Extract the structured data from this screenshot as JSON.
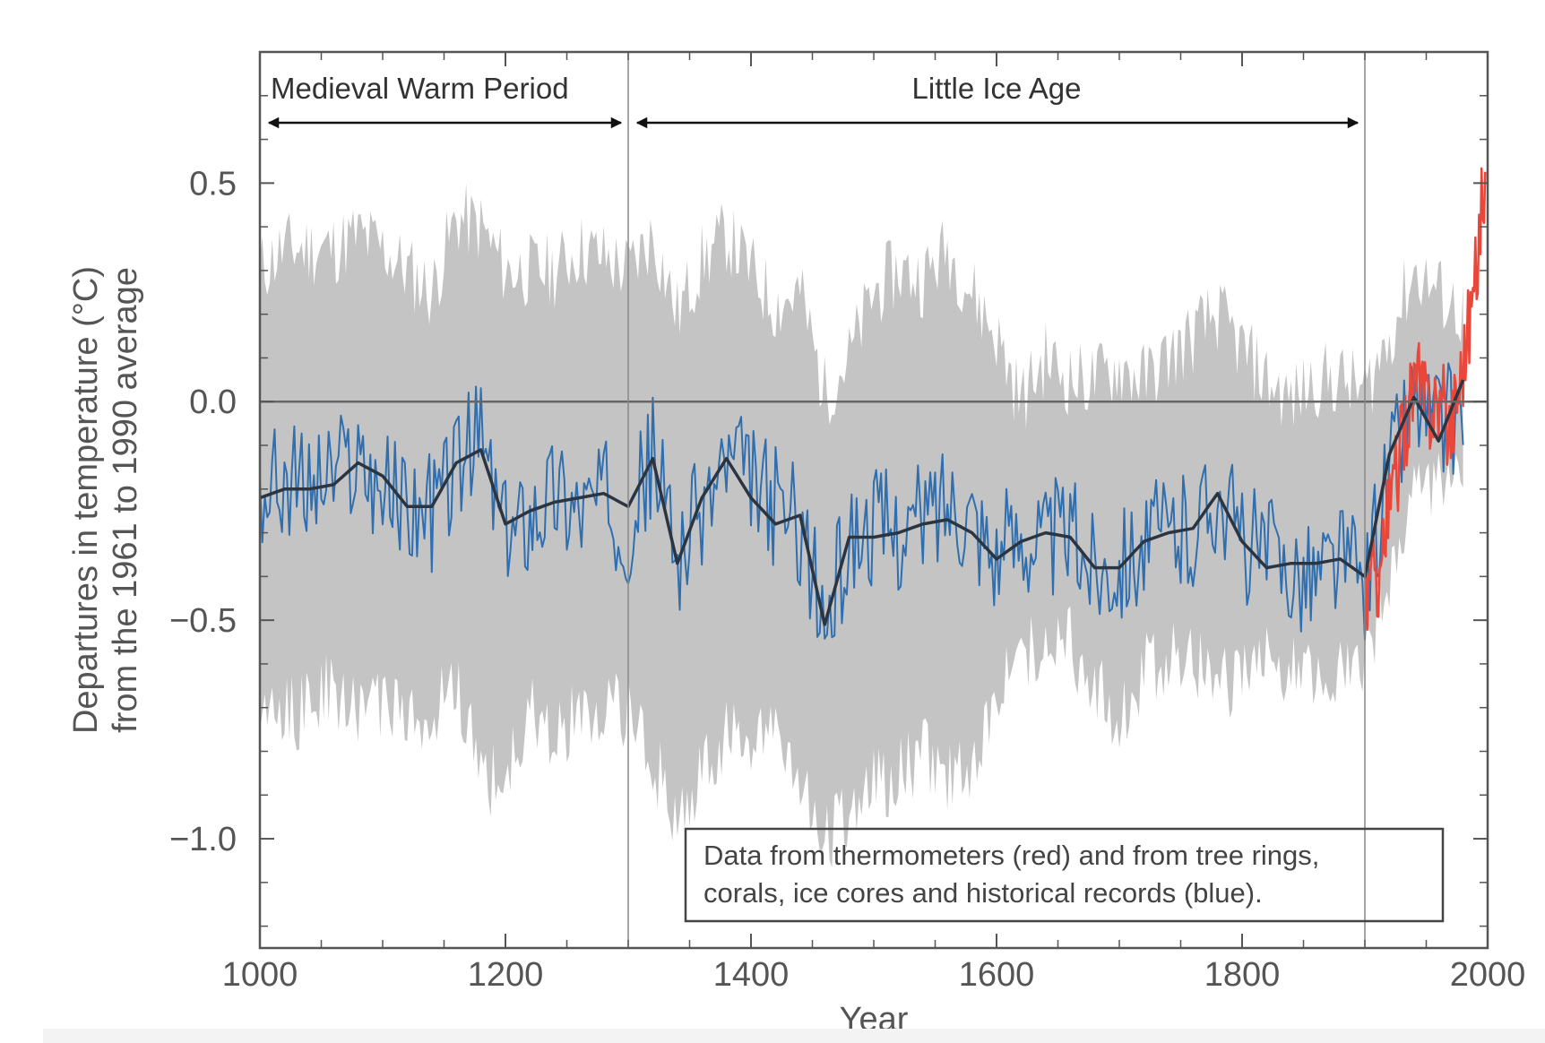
{
  "chart_data": {
    "type": "line",
    "title": "",
    "xlabel": "Year",
    "ylabel_lines": [
      "Departures in temperature (°C)",
      "from the 1961 to 1990 average"
    ],
    "xlim": [
      1000,
      2000
    ],
    "ylim": [
      -1.25,
      0.8
    ],
    "xticks": [
      1000,
      1200,
      1400,
      1600,
      1800,
      2000
    ],
    "yticks": [
      0.5,
      0.0,
      -0.5,
      -1.0
    ],
    "ytick_labels": [
      "0.5",
      "0.0",
      "−0.5",
      "−1.0"
    ],
    "grid": false,
    "zero_line": 0.0,
    "periods": [
      {
        "label": "Medieval Warm Period",
        "start": 1000,
        "end": 1300
      },
      {
        "label": "Little Ice Age",
        "start": 1300,
        "end": 1900
      }
    ],
    "annotation": [
      "Data from thermometers (red) and from tree rings,",
      "corals, ice cores and historical records (blue)."
    ],
    "colors": {
      "uncertainty": "#c4c4c4",
      "proxy": "#2f6fb0",
      "smoothed": "#2b3441",
      "instrumental": "#e8473a",
      "axis": "#555555"
    },
    "series": [
      {
        "name": "uncertainty",
        "kind": "band",
        "x": [
          1000,
          1020,
          1040,
          1060,
          1080,
          1100,
          1120,
          1140,
          1160,
          1180,
          1200,
          1220,
          1240,
          1260,
          1280,
          1300,
          1320,
          1340,
          1360,
          1380,
          1400,
          1420,
          1440,
          1460,
          1480,
          1500,
          1520,
          1540,
          1560,
          1580,
          1600,
          1620,
          1640,
          1660,
          1680,
          1700,
          1720,
          1740,
          1760,
          1780,
          1800,
          1820,
          1840,
          1860,
          1880,
          1900,
          1920,
          1940,
          1960,
          1980
        ],
        "upper": [
          0.3,
          0.35,
          0.35,
          0.35,
          0.38,
          0.35,
          0.3,
          0.25,
          0.42,
          0.4,
          0.3,
          0.3,
          0.3,
          0.35,
          0.33,
          0.3,
          0.38,
          0.2,
          0.32,
          0.38,
          0.3,
          0.22,
          0.25,
          0.02,
          0.1,
          0.25,
          0.3,
          0.28,
          0.35,
          0.25,
          0.15,
          0.0,
          0.1,
          0.05,
          0.05,
          0.08,
          0.05,
          0.1,
          0.15,
          0.2,
          0.12,
          0.05,
          0.0,
          0.05,
          0.05,
          0.02,
          0.15,
          0.3,
          0.25,
          0.2
        ],
        "lower": [
          -0.68,
          -0.72,
          -0.7,
          -0.65,
          -0.72,
          -0.68,
          -0.75,
          -0.7,
          -0.65,
          -0.85,
          -0.88,
          -0.72,
          -0.75,
          -0.72,
          -0.7,
          -0.72,
          -0.82,
          -0.95,
          -0.85,
          -0.75,
          -0.8,
          -0.75,
          -0.9,
          -1.0,
          -0.95,
          -0.88,
          -0.85,
          -0.8,
          -0.85,
          -0.88,
          -0.65,
          -0.6,
          -0.55,
          -0.55,
          -0.65,
          -0.72,
          -0.62,
          -0.58,
          -0.6,
          -0.65,
          -0.62,
          -0.58,
          -0.62,
          -0.65,
          -0.62,
          -0.6,
          -0.4,
          -0.2,
          -0.2,
          -0.2
        ]
      },
      {
        "name": "proxy",
        "kind": "line",
        "x": [
          1000,
          1020,
          1040,
          1060,
          1080,
          1100,
          1120,
          1140,
          1160,
          1180,
          1200,
          1220,
          1240,
          1260,
          1280,
          1300,
          1320,
          1340,
          1360,
          1380,
          1400,
          1420,
          1440,
          1460,
          1480,
          1500,
          1520,
          1540,
          1560,
          1580,
          1600,
          1620,
          1640,
          1660,
          1680,
          1700,
          1720,
          1740,
          1760,
          1780,
          1800,
          1820,
          1840,
          1860,
          1880,
          1900,
          1920,
          1940,
          1960,
          1980
        ],
        "values": [
          -0.22,
          -0.18,
          -0.2,
          -0.17,
          -0.13,
          -0.2,
          -0.24,
          -0.25,
          -0.15,
          -0.08,
          -0.32,
          -0.25,
          -0.2,
          -0.24,
          -0.22,
          -0.28,
          -0.12,
          -0.35,
          -0.25,
          -0.14,
          -0.18,
          -0.24,
          -0.28,
          -0.52,
          -0.32,
          -0.28,
          -0.3,
          -0.27,
          -0.22,
          -0.25,
          -0.35,
          -0.3,
          -0.32,
          -0.3,
          -0.38,
          -0.36,
          -0.33,
          -0.3,
          -0.3,
          -0.2,
          -0.32,
          -0.35,
          -0.38,
          -0.4,
          -0.35,
          -0.42,
          -0.15,
          0.02,
          -0.06,
          -0.02
        ]
      },
      {
        "name": "smoothed",
        "kind": "line",
        "x": [
          1000,
          1020,
          1040,
          1060,
          1080,
          1100,
          1120,
          1140,
          1160,
          1180,
          1200,
          1220,
          1240,
          1260,
          1280,
          1300,
          1320,
          1340,
          1360,
          1380,
          1400,
          1420,
          1440,
          1460,
          1480,
          1500,
          1520,
          1540,
          1560,
          1580,
          1600,
          1620,
          1640,
          1660,
          1680,
          1700,
          1720,
          1740,
          1760,
          1780,
          1800,
          1820,
          1840,
          1860,
          1880,
          1900,
          1920,
          1940,
          1960,
          1980
        ],
        "values": [
          -0.22,
          -0.2,
          -0.2,
          -0.19,
          -0.14,
          -0.17,
          -0.24,
          -0.24,
          -0.14,
          -0.11,
          -0.28,
          -0.25,
          -0.23,
          -0.22,
          -0.21,
          -0.24,
          -0.13,
          -0.37,
          -0.22,
          -0.13,
          -0.22,
          -0.28,
          -0.26,
          -0.51,
          -0.31,
          -0.31,
          -0.3,
          -0.28,
          -0.27,
          -0.3,
          -0.36,
          -0.32,
          -0.3,
          -0.31,
          -0.38,
          -0.38,
          -0.32,
          -0.3,
          -0.29,
          -0.21,
          -0.32,
          -0.38,
          -0.37,
          -0.37,
          -0.36,
          -0.4,
          -0.12,
          0.01,
          -0.09,
          0.05
        ]
      },
      {
        "name": "instrumental",
        "kind": "line",
        "x": [
          1900,
          1910,
          1920,
          1930,
          1940,
          1950,
          1960,
          1970,
          1980,
          1990,
          1998
        ],
        "values": [
          -0.45,
          -0.4,
          -0.25,
          -0.1,
          0.05,
          0.0,
          0.0,
          -0.05,
          0.1,
          0.28,
          0.55
        ]
      }
    ]
  }
}
